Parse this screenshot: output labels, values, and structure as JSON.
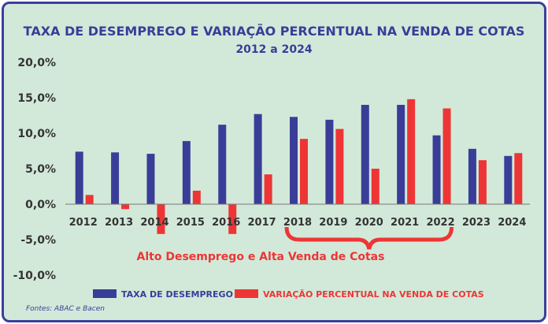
{
  "chart_data": {
    "type": "bar",
    "title": "TAXA DE DESEMPREGO E VARIAÇÃO PERCENTUAL NA VENDA DE COTAS",
    "subtitle": "2012 a 2024",
    "categories": [
      "2012",
      "2013",
      "2014",
      "2015",
      "2016",
      "2017",
      "2018",
      "2019",
      "2020",
      "2021",
      "2022",
      "2023",
      "2024"
    ],
    "series": [
      {
        "name": "TAXA DE DESEMPREGO",
        "color": "#3a3d98",
        "values": [
          7.4,
          7.3,
          7.1,
          8.9,
          11.2,
          12.7,
          12.3,
          11.9,
          14.0,
          14.0,
          9.7,
          7.8,
          6.8
        ]
      },
      {
        "name": "VARIAÇÃO PERCENTUAL NA VENDA DE COTAS",
        "color": "#ee3535",
        "values": [
          1.3,
          -0.7,
          -4.2,
          1.9,
          -4.2,
          4.2,
          9.2,
          10.6,
          5.0,
          14.8,
          13.5,
          6.2,
          7.2
        ]
      }
    ],
    "yticks": [
      "20,0%",
      "15,0%",
      "10,0%",
      "5,0%",
      "0,0%",
      "-5,0%",
      "-10,0%"
    ],
    "ytick_values": [
      20,
      15,
      10,
      5,
      0,
      -5,
      -10
    ],
    "ylim": [
      -10,
      20
    ],
    "annotation": "Alto Desemprego e Alta Venda de Cotas",
    "annotation_range": [
      "2018",
      "2022"
    ],
    "legend_position": "bottom",
    "source": "Fontes: ABAC e Bacen"
  }
}
